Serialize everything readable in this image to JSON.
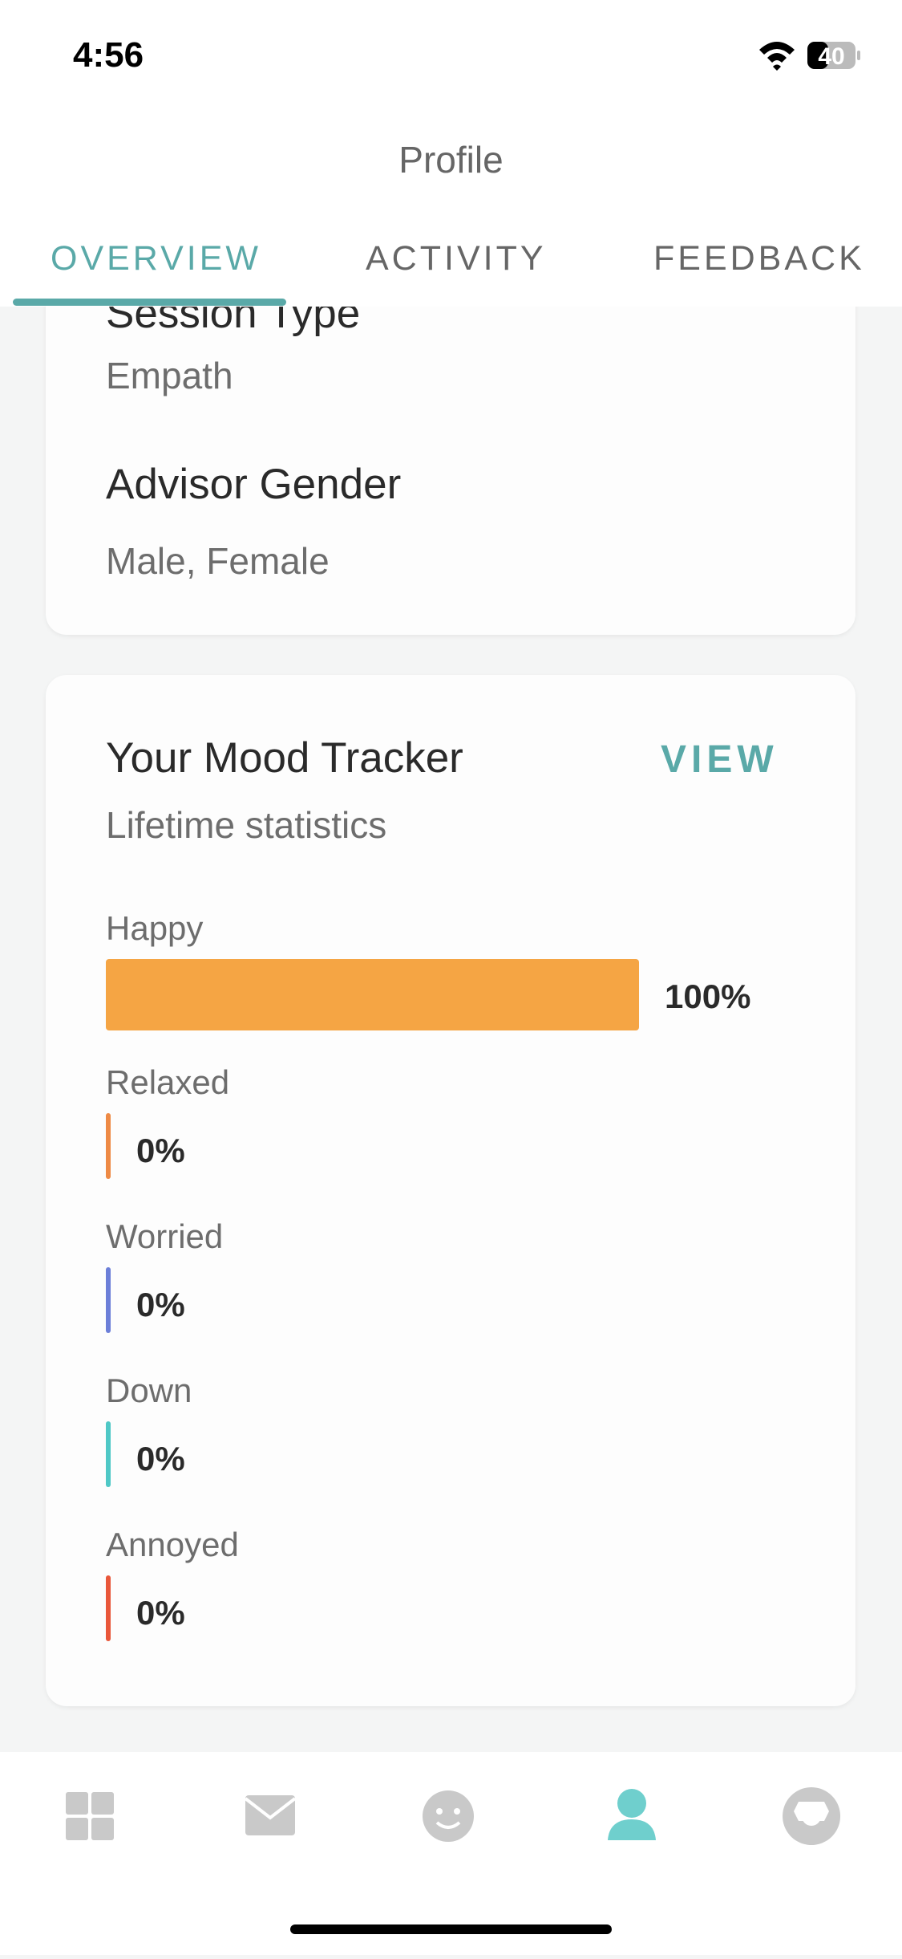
{
  "status_bar": {
    "time": "4:56",
    "battery": "40"
  },
  "header": {
    "title": "Profile",
    "tabs": [
      "OVERVIEW",
      "ACTIVITY",
      "FEEDBACK"
    ],
    "active_tab": 0
  },
  "preferences": [
    {
      "label": "Session Type",
      "value": "Empath"
    },
    {
      "label": "Advisor Gender",
      "value": "Male, Female"
    }
  ],
  "mood_tracker": {
    "title": "Your Mood Tracker",
    "action": "VIEW",
    "subtitle": "Lifetime statistics",
    "moods": [
      {
        "name": "Happy",
        "value": 100,
        "value_label": "100%",
        "color": "#f5a544"
      },
      {
        "name": "Relaxed",
        "value": 0,
        "value_label": "0%",
        "color": "#ee8a45"
      },
      {
        "name": "Worried",
        "value": 0,
        "value_label": "0%",
        "color": "#6c7fd8"
      },
      {
        "name": "Down",
        "value": 0,
        "value_label": "0%",
        "color": "#4fc8c6"
      },
      {
        "name": "Annoyed",
        "value": 0,
        "value_label": "0%",
        "color": "#e9573a"
      }
    ]
  }
}
